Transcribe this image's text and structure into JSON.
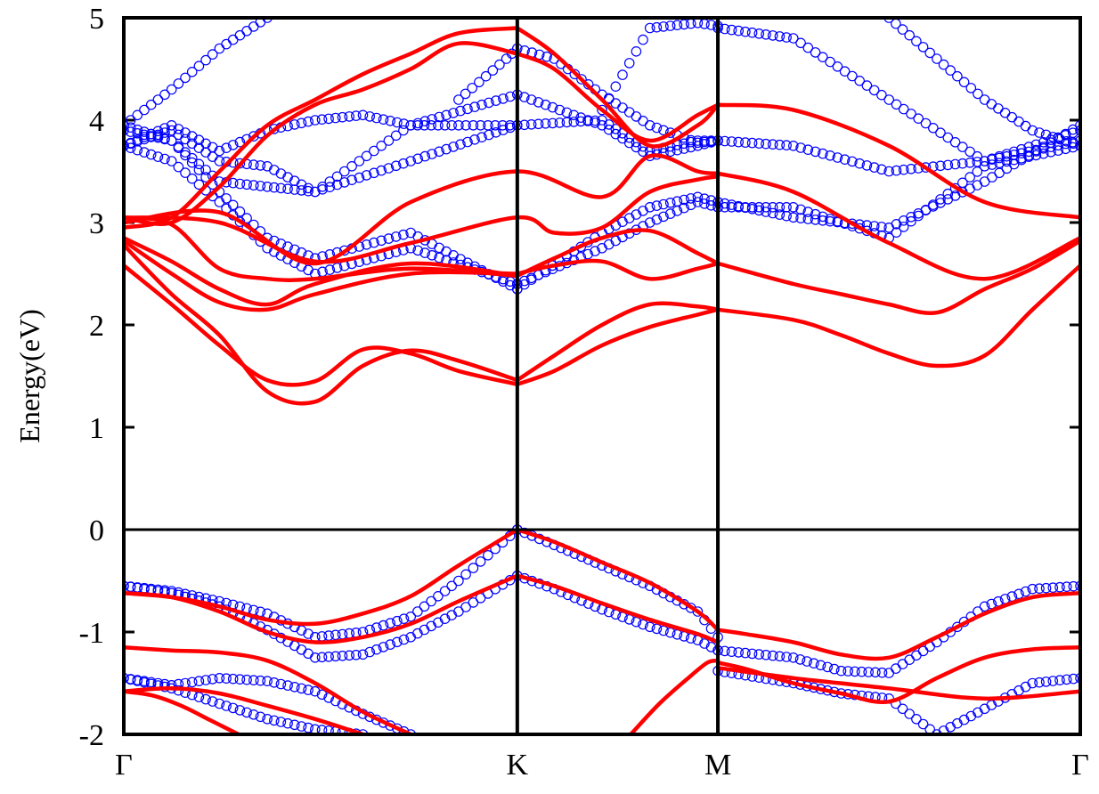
{
  "chart_data": {
    "type": "line",
    "ylabel": "Energy(eV)",
    "ylim": [
      -2,
      5
    ],
    "xlim": [
      0,
      1
    ],
    "yticks": [
      "-2",
      "-1",
      "0",
      "1",
      "2",
      "3",
      "4",
      "5"
    ],
    "xticks": [
      {
        "label": "Γ",
        "x": 0.0
      },
      {
        "label": "K",
        "x": 0.4114
      },
      {
        "label": "M",
        "x": 0.6211
      },
      {
        "label": "Γ",
        "x": 1.0
      }
    ],
    "vlines": [
      0.4114,
      0.6211
    ],
    "hline": 0,
    "colors": {
      "red_series": "#ff0000",
      "blue_series": "#0000ff",
      "axes": "#000000"
    },
    "series": [
      {
        "style": "red-line",
        "x": [
          0.0,
          0.05,
          0.1,
          0.15,
          0.2,
          0.25,
          0.3,
          0.35,
          0.4114
        ],
        "y": [
          -0.62,
          -0.66,
          -0.75,
          -0.88,
          -0.92,
          -0.82,
          -0.65,
          -0.35,
          0.0
        ]
      },
      {
        "style": "red-line",
        "x": [
          0.0,
          0.05,
          0.1,
          0.15,
          0.2,
          0.25,
          0.3,
          0.35,
          0.4114
        ],
        "y": [
          -0.62,
          -0.66,
          -0.8,
          -1.0,
          -1.1,
          -1.05,
          -0.92,
          -0.7,
          -0.45
        ]
      },
      {
        "style": "red-line",
        "x": [
          0.4114,
          0.45,
          0.5,
          0.55,
          0.6,
          0.6211
        ],
        "y": [
          0.0,
          -0.12,
          -0.32,
          -0.52,
          -0.8,
          -0.98
        ]
      },
      {
        "style": "red-line",
        "x": [
          0.4114,
          0.45,
          0.5,
          0.55,
          0.6,
          0.6211
        ],
        "y": [
          -0.45,
          -0.55,
          -0.72,
          -0.88,
          -1.02,
          -1.1
        ]
      },
      {
        "style": "red-line",
        "x": [
          0.6211,
          0.65,
          0.7,
          0.75,
          0.8,
          0.85,
          0.9,
          0.95,
          1.0
        ],
        "y": [
          -0.98,
          -1.02,
          -1.1,
          -1.22,
          -1.25,
          -1.05,
          -0.82,
          -0.66,
          -0.62
        ]
      },
      {
        "style": "red-line",
        "x": [
          0.0,
          0.05,
          0.1,
          0.15,
          0.2,
          0.25,
          0.3
        ],
        "y": [
          -1.15,
          -1.18,
          -1.2,
          -1.28,
          -1.5,
          -1.78,
          -2.0
        ]
      },
      {
        "style": "red-line",
        "x": [
          0.0,
          0.03,
          0.06,
          0.09,
          0.12
        ],
        "y": [
          -1.58,
          -1.62,
          -1.72,
          -1.86,
          -2.0
        ]
      },
      {
        "style": "red-line",
        "x": [
          0.0,
          0.05,
          0.1,
          0.15,
          0.2,
          0.25
        ],
        "y": [
          -1.58,
          -1.55,
          -1.6,
          -1.72,
          -1.85,
          -2.0
        ]
      },
      {
        "style": "red-line",
        "x": [
          0.53,
          0.56,
          0.59,
          0.61,
          0.6211
        ],
        "y": [
          -2.0,
          -1.7,
          -1.45,
          -1.3,
          -1.28
        ]
      },
      {
        "style": "red-line",
        "x": [
          0.6211,
          0.65,
          0.7,
          0.75,
          0.8,
          0.85,
          0.9,
          0.95,
          1.0
        ],
        "y": [
          -1.3,
          -1.36,
          -1.5,
          -1.6,
          -1.68,
          -1.45,
          -1.25,
          -1.17,
          -1.15
        ]
      },
      {
        "style": "red-line",
        "x": [
          0.6211,
          0.7,
          0.8,
          0.9,
          1.0
        ],
        "y": [
          -1.35,
          -1.45,
          -1.55,
          -1.65,
          -1.58
        ]
      },
      {
        "style": "red-line",
        "x": [
          0.0,
          0.05,
          0.1,
          0.15,
          0.2,
          0.25,
          0.3,
          0.35,
          0.4114
        ],
        "y": [
          2.58,
          2.2,
          1.8,
          1.46,
          1.45,
          1.76,
          1.72,
          1.55,
          1.42
        ]
      },
      {
        "style": "red-line",
        "x": [
          0.0,
          0.05,
          0.1,
          0.15,
          0.2,
          0.25,
          0.3,
          0.35,
          0.4114
        ],
        "y": [
          2.78,
          2.3,
          1.9,
          1.35,
          1.25,
          1.6,
          1.75,
          1.65,
          1.46
        ]
      },
      {
        "style": "red-line",
        "x": [
          0.4114,
          0.45,
          0.5,
          0.55,
          0.6,
          0.6211
        ],
        "y": [
          1.42,
          1.55,
          1.8,
          1.98,
          2.1,
          2.15
        ]
      },
      {
        "style": "red-line",
        "x": [
          0.4114,
          0.45,
          0.5,
          0.55,
          0.6,
          0.6211
        ],
        "y": [
          1.46,
          1.7,
          2.0,
          2.2,
          2.18,
          2.15
        ]
      },
      {
        "style": "red-line",
        "x": [
          0.6211,
          0.7,
          0.75,
          0.8,
          0.85,
          0.9,
          0.95,
          1.0
        ],
        "y": [
          2.15,
          2.05,
          1.9,
          1.72,
          1.6,
          1.7,
          2.15,
          2.58
        ]
      },
      {
        "style": "red-line",
        "x": [
          0.0,
          0.05,
          0.1,
          0.15,
          0.2,
          0.3,
          0.4114
        ],
        "y": [
          2.82,
          2.5,
          2.22,
          2.15,
          2.3,
          2.5,
          2.5
        ]
      },
      {
        "style": "red-line",
        "x": [
          0.0,
          0.05,
          0.1,
          0.15,
          0.2,
          0.3,
          0.4114
        ],
        "y": [
          2.85,
          2.62,
          2.35,
          2.2,
          2.4,
          2.6,
          2.48
        ]
      },
      {
        "style": "red-line",
        "x": [
          0.0,
          0.05,
          0.1,
          0.15,
          0.2,
          0.3,
          0.4114
        ],
        "y": [
          3.05,
          2.98,
          2.55,
          2.45,
          2.45,
          2.55,
          2.48
        ]
      },
      {
        "style": "red-line",
        "x": [
          0.4114,
          0.45,
          0.5,
          0.55,
          0.6,
          0.6211
        ],
        "y": [
          2.5,
          2.58,
          2.62,
          2.45,
          2.55,
          2.6
        ]
      },
      {
        "style": "red-line",
        "x": [
          0.4114,
          0.45,
          0.5,
          0.55,
          0.6,
          0.6211
        ],
        "y": [
          2.48,
          2.65,
          2.85,
          2.92,
          2.7,
          2.6
        ]
      },
      {
        "style": "red-line",
        "x": [
          0.6211,
          0.7,
          0.75,
          0.8,
          0.85,
          0.9,
          0.95,
          1.0
        ],
        "y": [
          2.6,
          2.4,
          2.3,
          2.2,
          2.12,
          2.35,
          2.55,
          2.82
        ]
      },
      {
        "style": "red-line",
        "x": [
          0.0,
          0.1,
          0.2,
          0.3,
          0.4114,
          0.45,
          0.5,
          0.55,
          0.6,
          0.6211
        ],
        "y": [
          3.05,
          3.0,
          2.62,
          2.8,
          3.05,
          2.9,
          2.95,
          3.3,
          3.42,
          3.45
        ]
      },
      {
        "style": "red-line",
        "x": [
          0.0,
          0.1,
          0.2,
          0.3,
          0.4114,
          0.5,
          0.55,
          0.6,
          0.6211
        ],
        "y": [
          3.0,
          3.1,
          2.6,
          3.2,
          3.5,
          3.25,
          3.65,
          3.5,
          3.48
        ]
      },
      {
        "style": "red-line",
        "x": [
          0.6211,
          0.7,
          0.8,
          0.9,
          1.0
        ],
        "y": [
          3.48,
          3.3,
          2.8,
          2.45,
          2.85
        ]
      },
      {
        "style": "red-line",
        "x": [
          0.0,
          0.05,
          0.1,
          0.15,
          0.2,
          0.25,
          0.3,
          0.35,
          0.4114
        ],
        "y": [
          3.05,
          3.0,
          3.35,
          3.85,
          4.15,
          4.3,
          4.5,
          4.75,
          4.65
        ]
      },
      {
        "style": "red-line",
        "x": [
          0.0,
          0.05,
          0.1,
          0.15,
          0.2,
          0.25,
          0.3,
          0.35,
          0.4114
        ],
        "y": [
          2.95,
          3.05,
          3.5,
          3.95,
          4.2,
          4.45,
          4.65,
          4.85,
          4.9
        ]
      },
      {
        "style": "red-line",
        "x": [
          0.4114,
          0.45,
          0.5,
          0.55,
          0.6,
          0.6211
        ],
        "y": [
          4.65,
          4.5,
          4.1,
          3.8,
          4.05,
          4.15
        ]
      },
      {
        "style": "red-line",
        "x": [
          0.4114,
          0.45,
          0.5,
          0.55,
          0.6,
          0.6211
        ],
        "y": [
          4.9,
          4.65,
          4.2,
          3.75,
          3.95,
          4.15
        ]
      },
      {
        "style": "red-line",
        "x": [
          0.6211,
          0.7,
          0.8,
          0.9,
          1.0
        ],
        "y": [
          4.15,
          4.1,
          3.75,
          3.2,
          3.05
        ]
      },
      {
        "style": "blue-circles",
        "x": [
          0.0,
          0.05,
          0.1,
          0.15,
          0.2,
          0.25,
          0.3,
          0.35,
          0.4114
        ],
        "y": [
          -0.55,
          -0.6,
          -0.7,
          -0.82,
          -1.05,
          -1.0,
          -0.85,
          -0.5,
          0.0
        ]
      },
      {
        "style": "blue-circles",
        "x": [
          0.0,
          0.05,
          0.1,
          0.15,
          0.2,
          0.25,
          0.3,
          0.35,
          0.4114
        ],
        "y": [
          -0.55,
          -0.62,
          -0.75,
          -0.98,
          -1.25,
          -1.22,
          -1.05,
          -0.8,
          -0.45
        ]
      },
      {
        "style": "blue-circles",
        "x": [
          0.4114,
          0.45,
          0.5,
          0.55,
          0.6,
          0.6211
        ],
        "y": [
          0.0,
          -0.15,
          -0.35,
          -0.55,
          -0.8,
          -1.05
        ]
      },
      {
        "style": "blue-circles",
        "x": [
          0.4114,
          0.45,
          0.5,
          0.55,
          0.6,
          0.6211
        ],
        "y": [
          -0.45,
          -0.58,
          -0.78,
          -0.95,
          -1.08,
          -1.18
        ]
      },
      {
        "style": "blue-circles",
        "x": [
          0.6211,
          0.7,
          0.75,
          0.8,
          0.85,
          0.9,
          0.95,
          1.0
        ],
        "y": [
          -1.18,
          -1.25,
          -1.38,
          -1.4,
          -1.1,
          -0.75,
          -0.58,
          -0.55
        ]
      },
      {
        "style": "blue-circles",
        "x": [
          0.6211,
          0.7,
          0.75,
          0.8,
          0.85,
          0.9,
          0.95,
          1.0
        ],
        "y": [
          -1.38,
          -1.5,
          -1.6,
          -1.65,
          -2.0,
          -1.75,
          -1.5,
          -1.45
        ]
      },
      {
        "style": "blue-circles",
        "x": [
          0.0,
          0.05,
          0.1,
          0.15,
          0.2,
          0.25,
          0.3
        ],
        "y": [
          -1.45,
          -1.52,
          -1.45,
          -1.48,
          -1.58,
          -1.8,
          -2.0
        ]
      },
      {
        "style": "blue-circles",
        "x": [
          0.0,
          0.05,
          0.1,
          0.15,
          0.2,
          0.25
        ],
        "y": [
          -1.45,
          -1.55,
          -1.7,
          -1.85,
          -1.95,
          -2.0
        ]
      },
      {
        "style": "blue-circles",
        "x": [
          0.0,
          0.05,
          0.1,
          0.15,
          0.2,
          0.3,
          0.4114
        ],
        "y": [
          3.9,
          3.8,
          3.3,
          2.85,
          2.65,
          2.9,
          2.35
        ]
      },
      {
        "style": "blue-circles",
        "x": [
          0.0,
          0.05,
          0.1,
          0.15,
          0.2,
          0.3,
          0.4114
        ],
        "y": [
          3.75,
          3.6,
          3.2,
          2.75,
          2.5,
          2.75,
          2.4
        ]
      },
      {
        "style": "blue-circles",
        "x": [
          0.4114,
          0.5,
          0.55,
          0.6,
          0.6211
        ],
        "y": [
          2.35,
          2.9,
          3.15,
          3.25,
          3.2
        ]
      },
      {
        "style": "blue-circles",
        "x": [
          0.4114,
          0.5,
          0.55,
          0.6,
          0.6211
        ],
        "y": [
          2.4,
          2.75,
          3.0,
          3.2,
          3.15
        ]
      },
      {
        "style": "blue-circles",
        "x": [
          0.6211,
          0.7,
          0.8,
          0.9,
          1.0
        ],
        "y": [
          3.2,
          3.05,
          2.95,
          3.4,
          3.95
        ]
      },
      {
        "style": "blue-circles",
        "x": [
          0.6211,
          0.7,
          0.8,
          0.9,
          1.0
        ],
        "y": [
          3.15,
          3.15,
          2.85,
          3.55,
          3.75
        ]
      },
      {
        "style": "blue-circles",
        "x": [
          0.0,
          0.05,
          0.1,
          0.15,
          0.2,
          0.3,
          0.4114,
          0.5,
          0.55,
          0.6,
          0.6211
        ],
        "y": [
          3.95,
          3.8,
          3.4,
          3.35,
          3.3,
          3.6,
          3.95,
          4.0,
          3.7,
          3.8,
          3.8
        ]
      },
      {
        "style": "blue-circles",
        "x": [
          0.0,
          0.05,
          0.1,
          0.15,
          0.2,
          0.3,
          0.4114,
          0.5,
          0.55,
          0.6,
          0.6211
        ],
        "y": [
          3.75,
          3.9,
          3.6,
          3.55,
          3.3,
          3.95,
          4.25,
          3.95,
          3.65,
          3.75,
          3.8
        ]
      },
      {
        "style": "blue-circles",
        "x": [
          0.6211,
          0.7,
          0.8,
          0.9,
          1.0
        ],
        "y": [
          3.8,
          3.75,
          3.5,
          3.6,
          3.9
        ]
      },
      {
        "style": "blue-circles",
        "x": [
          0.0,
          0.05,
          0.1,
          0.15,
          0.2,
          0.25,
          0.3,
          0.35,
          0.4114
        ],
        "y": [
          3.75,
          3.95,
          3.7,
          3.9,
          4.0,
          4.05,
          3.95,
          3.95,
          3.95
        ]
      },
      {
        "style": "blue-circles",
        "x": [
          0.0,
          0.05,
          0.1,
          0.15
        ],
        "y": [
          3.95,
          4.3,
          4.7,
          5.0
        ]
      },
      {
        "style": "blue-circles",
        "x": [
          0.35,
          0.4,
          0.4114,
          0.45,
          0.5,
          0.55,
          0.6,
          0.6211
        ],
        "y": [
          4.2,
          4.6,
          4.7,
          4.6,
          4.25,
          3.95,
          3.78,
          3.8
        ]
      },
      {
        "style": "blue-circles",
        "x": [
          0.5,
          0.55,
          0.6,
          0.6211
        ],
        "y": [
          4.1,
          4.9,
          4.95,
          4.92
        ]
      },
      {
        "style": "blue-circles",
        "x": [
          0.6211,
          0.7,
          0.8,
          0.9,
          1.0
        ],
        "y": [
          4.9,
          4.8,
          4.2,
          3.6,
          3.8
        ]
      },
      {
        "style": "blue-circles",
        "x": [
          0.8,
          0.85,
          0.9,
          0.95,
          1.0
        ],
        "y": [
          5.0,
          4.6,
          4.2,
          3.9,
          3.75
        ]
      }
    ]
  }
}
